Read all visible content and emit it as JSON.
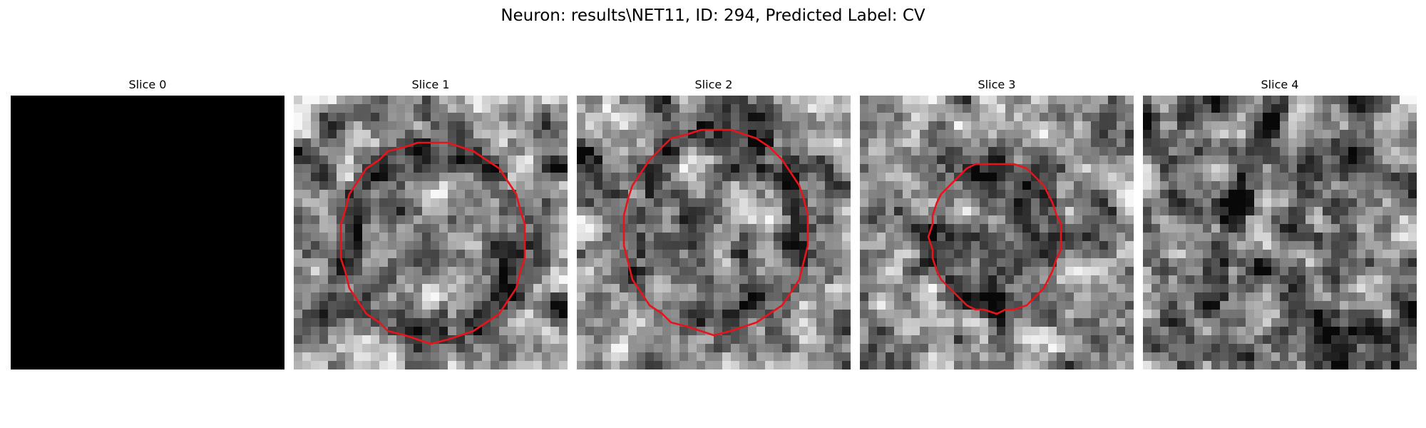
{
  "figure": {
    "title": "Neuron: results\\NET11, ID: 294, Predicted Label: CV"
  },
  "slices": [
    {
      "title": "Slice 0",
      "blank": true,
      "seed": 0,
      "has_contour": false,
      "bright_center": false
    },
    {
      "title": "Slice 1",
      "blank": false,
      "seed": 11,
      "has_contour": true,
      "bright_center": true
    },
    {
      "title": "Slice 2",
      "blank": false,
      "seed": 23,
      "has_contour": true,
      "bright_center": true
    },
    {
      "title": "Slice 3",
      "blank": false,
      "seed": 37,
      "has_contour": true,
      "bright_center": false
    },
    {
      "title": "Slice 4",
      "blank": false,
      "seed": 53,
      "has_contour": false,
      "bright_center": false
    }
  ],
  "colors": {
    "contour": "#e8141b",
    "background": "#ffffff",
    "blank_slice": "#000000"
  }
}
